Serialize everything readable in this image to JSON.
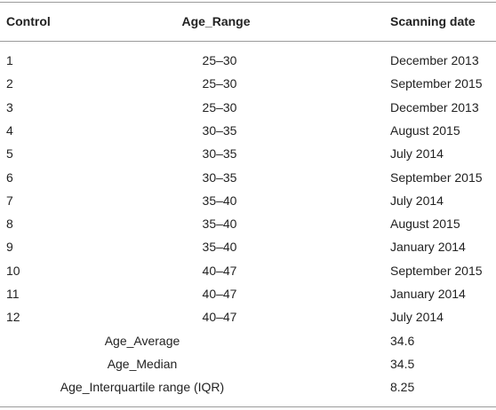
{
  "table": {
    "header": [
      "Control",
      "Age_Range",
      "Scanning date"
    ],
    "rows": [
      [
        1,
        "25–30",
        "December 2013"
      ],
      [
        2,
        "25–30",
        "September 2015"
      ],
      [
        3,
        "25–30",
        "December 2013"
      ],
      [
        4,
        "30–35",
        "August 2015"
      ],
      [
        5,
        "30–35",
        "July 2014"
      ],
      [
        6,
        "30–35",
        "September 2015"
      ],
      [
        7,
        "35–40",
        "July 2014"
      ],
      [
        8,
        "35–40",
        "August 2015"
      ],
      [
        9,
        "35–40",
        "January 2014"
      ],
      [
        10,
        "40–47",
        "September 2015"
      ],
      [
        11,
        "40–47",
        "January 2014"
      ],
      [
        12,
        "40–47",
        "July 2014"
      ]
    ],
    "summary": [
      [
        "Age_Average",
        34.6
      ],
      [
        "Age_Median",
        34.5
      ],
      [
        "Age_Interquartile range (IQR)",
        8.25
      ]
    ]
  }
}
